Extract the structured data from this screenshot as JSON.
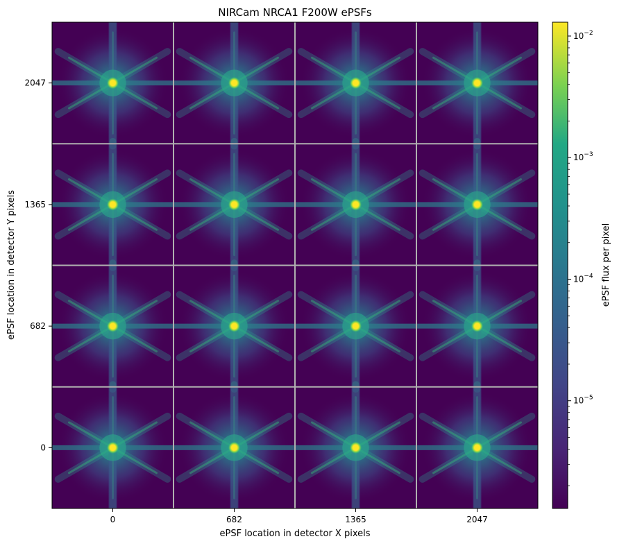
{
  "chart_data": {
    "type": "heatmap",
    "title": "NIRCam NRCA1 F200W ePSFs",
    "xlabel": "ePSF location in detector X pixels",
    "ylabel": "ePSF location in detector Y pixels",
    "x_ticks": [
      "0",
      "682",
      "1365",
      "2047"
    ],
    "y_ticks": [
      "2047",
      "1365",
      "682",
      "0"
    ],
    "grid": "4x4 ePSF tiles separated by gray lines",
    "colormap": "viridis",
    "colorbar": {
      "label": "ePSF flux per pixel",
      "scale": "log",
      "range": [
        1.3e-06,
        0.013
      ],
      "tick_values": [
        0.01,
        0.001,
        0.0001,
        1e-05
      ],
      "tick_mantissa": "10",
      "tick_exponents": [
        "−2",
        "−3",
        "−4",
        "−5"
      ]
    },
    "colors": {
      "background": "#440154",
      "peak": "#fde725",
      "divider": "#b0b0b0"
    }
  }
}
